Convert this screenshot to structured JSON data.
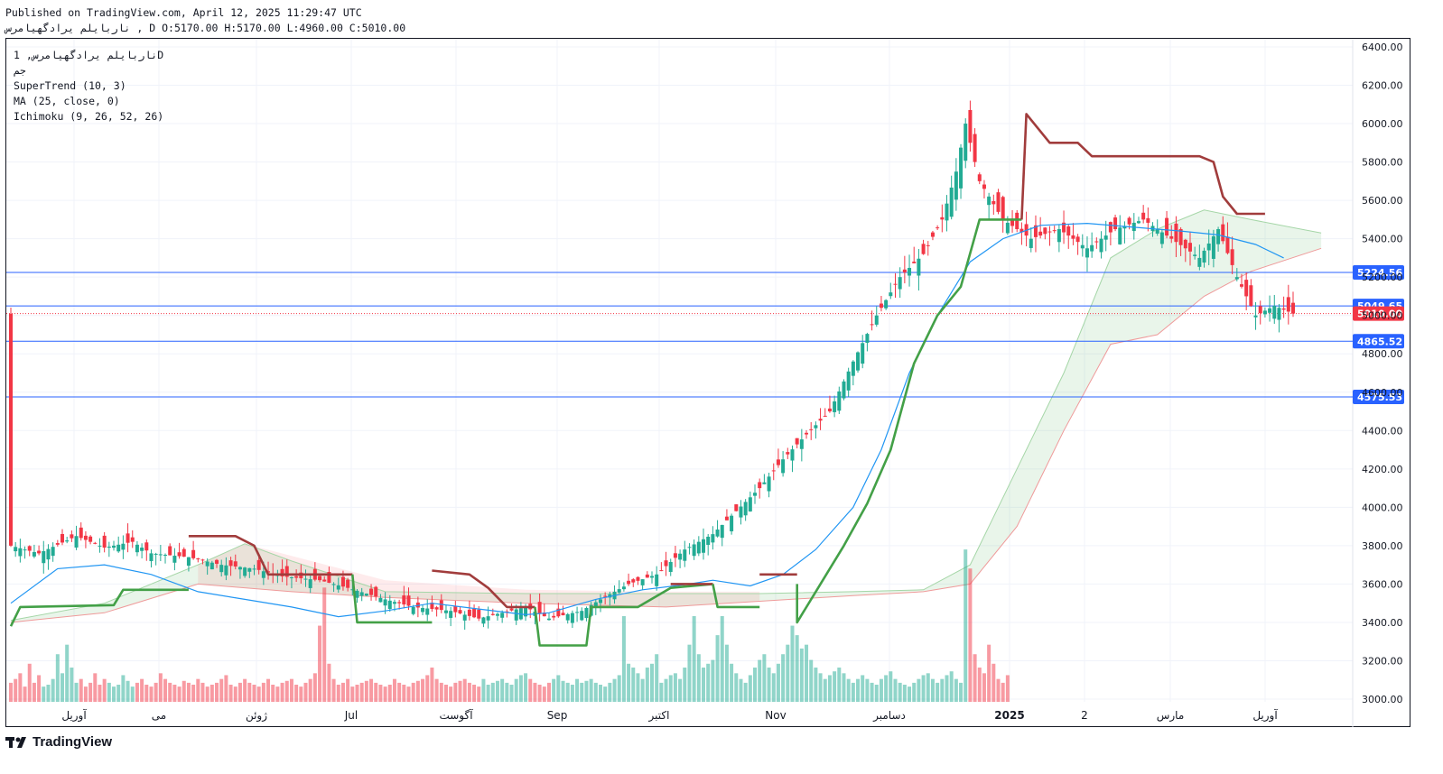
{
  "header": {
    "published": "Published on TradingView.com, April 12, 2025 11:29:47 UTC",
    "ohlc": "ناربایلم یرادگهیامرس , D O:5170.00 H:5170.00 L:4960.00 C:5010.00"
  },
  "legend": {
    "symbol": "ناربایلم یرادگهیامرس, 1D",
    "exchange": "جم",
    "supertrend": "SuperTrend (10, 3)",
    "ma": "MA (25, close, 0)",
    "ichimoku": "Ichimoku (9, 26, 52, 26)"
  },
  "brand": {
    "name": "TradingView"
  },
  "chart_data": {
    "type": "candlestick",
    "ylim": [
      3000,
      6400
    ],
    "y_ticks": [
      "6400.00",
      "6200.00",
      "6000.00",
      "5800.00",
      "5600.00",
      "5400.00",
      "5200.00",
      "5000.00",
      "4800.00",
      "4600.00",
      "4400.00",
      "4200.00",
      "4000.00",
      "3800.00",
      "3600.00",
      "3400.00",
      "3200.00",
      "3000.00"
    ],
    "x_labels": [
      "آوریل",
      "می",
      "ژوئن",
      "Jul",
      "آگوست",
      "Sep",
      "اکتبر",
      "Nov",
      "دسامبر",
      "2025",
      "2",
      "مارس",
      "آوریل"
    ],
    "x_label_bold": "2025",
    "horizontal_levels": [
      {
        "value": 5224.56,
        "label": "5224.56",
        "color": "#2962ff"
      },
      {
        "value": 5049.65,
        "label": "5049.65",
        "color": "#2962ff"
      },
      {
        "value": 4865.52,
        "label": "4865.52",
        "color": "#2962ff"
      },
      {
        "value": 4575.53,
        "label": "4575.53",
        "color": "#2962ff"
      }
    ],
    "last_price": {
      "value": 5010.0,
      "label": "5010.00",
      "color": "#f23645"
    },
    "colors": {
      "up": "#22ab94",
      "down": "#f23645",
      "ma": "#2196f3",
      "st_up": "#43a047",
      "st_down": "#a13c3c",
      "cloud_green": "#a5d6a7",
      "cloud_red": "#ef9a9a"
    },
    "price_path": [
      [
        0,
        3800
      ],
      [
        6,
        3760
      ],
      [
        14,
        3850
      ],
      [
        20,
        3790
      ],
      [
        26,
        3820
      ],
      [
        30,
        3760
      ],
      [
        38,
        3740
      ],
      [
        45,
        3700
      ],
      [
        52,
        3680
      ],
      [
        58,
        3640
      ],
      [
        66,
        3620
      ],
      [
        72,
        3580
      ],
      [
        80,
        3520
      ],
      [
        86,
        3480
      ],
      [
        94,
        3460
      ],
      [
        100,
        3420
      ],
      [
        110,
        3480
      ],
      [
        115,
        3420
      ],
      [
        122,
        3460
      ],
      [
        126,
        3520
      ],
      [
        132,
        3600
      ],
      [
        138,
        3650
      ],
      [
        144,
        3780
      ],
      [
        150,
        3860
      ],
      [
        155,
        3980
      ],
      [
        160,
        4100
      ],
      [
        165,
        4250
      ],
      [
        170,
        4380
      ],
      [
        175,
        4500
      ],
      [
        180,
        4760
      ],
      [
        185,
        5000
      ],
      [
        190,
        5200
      ],
      [
        195,
        5320
      ],
      [
        199,
        5500
      ],
      [
        202,
        5750
      ],
      [
        204,
        6000
      ],
      [
        207,
        5700
      ],
      [
        212,
        5500
      ],
      [
        218,
        5400
      ],
      [
        224,
        5450
      ],
      [
        230,
        5350
      ],
      [
        236,
        5450
      ],
      [
        242,
        5500
      ],
      [
        248,
        5400
      ],
      [
        254,
        5300
      ],
      [
        258,
        5450
      ],
      [
        262,
        5200
      ],
      [
        266,
        5000
      ],
      [
        270,
        5050
      ],
      [
        274,
        5010
      ]
    ],
    "ma_path": [
      [
        0,
        3500
      ],
      [
        10,
        3680
      ],
      [
        20,
        3700
      ],
      [
        30,
        3650
      ],
      [
        40,
        3560
      ],
      [
        50,
        3520
      ],
      [
        60,
        3480
      ],
      [
        70,
        3430
      ],
      [
        80,
        3460
      ],
      [
        90,
        3500
      ],
      [
        100,
        3470
      ],
      [
        110,
        3440
      ],
      [
        115,
        3450
      ],
      [
        125,
        3520
      ],
      [
        135,
        3570
      ],
      [
        145,
        3600
      ],
      [
        150,
        3620
      ],
      [
        158,
        3590
      ],
      [
        165,
        3650
      ],
      [
        172,
        3780
      ],
      [
        180,
        4000
      ],
      [
        186,
        4300
      ],
      [
        192,
        4700
      ],
      [
        198,
        5000
      ],
      [
        205,
        5280
      ],
      [
        212,
        5400
      ],
      [
        220,
        5470
      ],
      [
        230,
        5480
      ],
      [
        240,
        5460
      ],
      [
        250,
        5440
      ],
      [
        258,
        5420
      ],
      [
        266,
        5370
      ],
      [
        272,
        5300
      ]
    ],
    "supertrend": [
      {
        "trend": "up",
        "points": [
          [
            0,
            3380
          ],
          [
            2,
            3480
          ],
          [
            22,
            3490
          ],
          [
            24,
            3570
          ],
          [
            38,
            3570
          ]
        ]
      },
      {
        "trend": "down",
        "points": [
          [
            38,
            3850
          ],
          [
            48,
            3850
          ],
          [
            52,
            3800
          ],
          [
            55,
            3650
          ],
          [
            73,
            3650
          ]
        ]
      },
      {
        "trend": "up",
        "points": [
          [
            73,
            3650
          ],
          [
            74,
            3400
          ],
          [
            90,
            3400
          ]
        ]
      },
      {
        "trend": "down",
        "points": [
          [
            90,
            3670
          ],
          [
            98,
            3650
          ],
          [
            102,
            3580
          ],
          [
            106,
            3480
          ],
          [
            112,
            3480
          ]
        ]
      },
      {
        "trend": "up",
        "points": [
          [
            112,
            3480
          ],
          [
            113,
            3280
          ],
          [
            123,
            3280
          ],
          [
            124,
            3480
          ],
          [
            134,
            3480
          ],
          [
            141,
            3580
          ],
          [
            150,
            3600
          ]
        ]
      },
      {
        "trend": "down",
        "points": [
          [
            141,
            3600
          ],
          [
            150,
            3600
          ]
        ]
      },
      {
        "trend": "up",
        "points": [
          [
            150,
            3600
          ],
          [
            151,
            3480
          ],
          [
            160,
            3480
          ]
        ]
      },
      {
        "trend": "down",
        "points": [
          [
            160,
            3650
          ],
          [
            168,
            3650
          ]
        ]
      },
      {
        "trend": "up",
        "points": [
          [
            168,
            3600
          ],
          [
            168,
            3400
          ],
          [
            173,
            3600
          ],
          [
            178,
            3800
          ],
          [
            183,
            4020
          ],
          [
            188,
            4300
          ],
          [
            193,
            4750
          ],
          [
            198,
            5000
          ],
          [
            203,
            5150
          ],
          [
            207,
            5500
          ],
          [
            216,
            5500
          ]
        ]
      },
      {
        "trend": "down",
        "points": [
          [
            216,
            5500
          ],
          [
            217,
            6050
          ],
          [
            222,
            5900
          ],
          [
            228,
            5900
          ],
          [
            231,
            5830
          ],
          [
            254,
            5830
          ],
          [
            257,
            5800
          ],
          [
            259,
            5620
          ],
          [
            262,
            5530
          ],
          [
            268,
            5530
          ]
        ]
      }
    ],
    "cloud_green_upper": [
      [
        0,
        3410
      ],
      [
        20,
        3500
      ],
      [
        40,
        3700
      ],
      [
        50,
        3810
      ],
      [
        60,
        3720
      ],
      [
        80,
        3560
      ],
      [
        110,
        3550
      ],
      [
        140,
        3550
      ],
      [
        160,
        3550
      ],
      [
        180,
        3560
      ],
      [
        195,
        3570
      ],
      [
        205,
        3700
      ],
      [
        215,
        4200
      ],
      [
        225,
        4700
      ],
      [
        235,
        5300
      ],
      [
        245,
        5450
      ],
      [
        255,
        5550
      ],
      [
        265,
        5500
      ],
      [
        280,
        5430
      ]
    ],
    "cloud_green_lower": [
      [
        0,
        3400
      ],
      [
        20,
        3450
      ],
      [
        40,
        3600
      ],
      [
        60,
        3560
      ],
      [
        80,
        3530
      ],
      [
        110,
        3500
      ],
      [
        140,
        3480
      ],
      [
        160,
        3510
      ],
      [
        180,
        3540
      ],
      [
        195,
        3560
      ],
      [
        205,
        3600
      ],
      [
        215,
        3900
      ],
      [
        225,
        4400
      ],
      [
        235,
        4850
      ],
      [
        245,
        4900
      ],
      [
        255,
        5100
      ],
      [
        265,
        5230
      ],
      [
        280,
        5350
      ]
    ],
    "volume": [
      10,
      12,
      15,
      8,
      20,
      10,
      14,
      8,
      9,
      12,
      25,
      15,
      30,
      18,
      10,
      12,
      8,
      10,
      15,
      9,
      12,
      10,
      8,
      9,
      14,
      11,
      8,
      10,
      12,
      9,
      8,
      10,
      15,
      12,
      10,
      9,
      8,
      11,
      10,
      9,
      12,
      10,
      8,
      9,
      10,
      12,
      14,
      9,
      8,
      10,
      12,
      10,
      9,
      8,
      10,
      12,
      9,
      8,
      10,
      11,
      12,
      9,
      8,
      10,
      12,
      15,
      40,
      60,
      20,
      12,
      9,
      10,
      12,
      8,
      9,
      10,
      11,
      12,
      10,
      9,
      8,
      9,
      12,
      10,
      9,
      8,
      10,
      11,
      12,
      14,
      18,
      12,
      10,
      9,
      8,
      10,
      11,
      12,
      10,
      9,
      8,
      12,
      9,
      10,
      11,
      12,
      10,
      9,
      12,
      14,
      15,
      12,
      10,
      9,
      8,
      10,
      12,
      14,
      11,
      10,
      9,
      12,
      10,
      11,
      12,
      10,
      9,
      8,
      10,
      12,
      14,
      45,
      20,
      18,
      15,
      12,
      18,
      20,
      25,
      10,
      12,
      14,
      15,
      12,
      18,
      30,
      45,
      25,
      18,
      20,
      22,
      35,
      45,
      30,
      20,
      15,
      12,
      10,
      14,
      18,
      22,
      25,
      18,
      15,
      20,
      25,
      30,
      40,
      35,
      28,
      30,
      22,
      18,
      15,
      12,
      14,
      16,
      18,
      15,
      12,
      10,
      12,
      14,
      12,
      10,
      9,
      12,
      14,
      16,
      12,
      10,
      9,
      8,
      10,
      12,
      14,
      15,
      12,
      10,
      12,
      14,
      16,
      12,
      10,
      80,
      70,
      25,
      18,
      15,
      30,
      20,
      12,
      10,
      14
    ]
  }
}
